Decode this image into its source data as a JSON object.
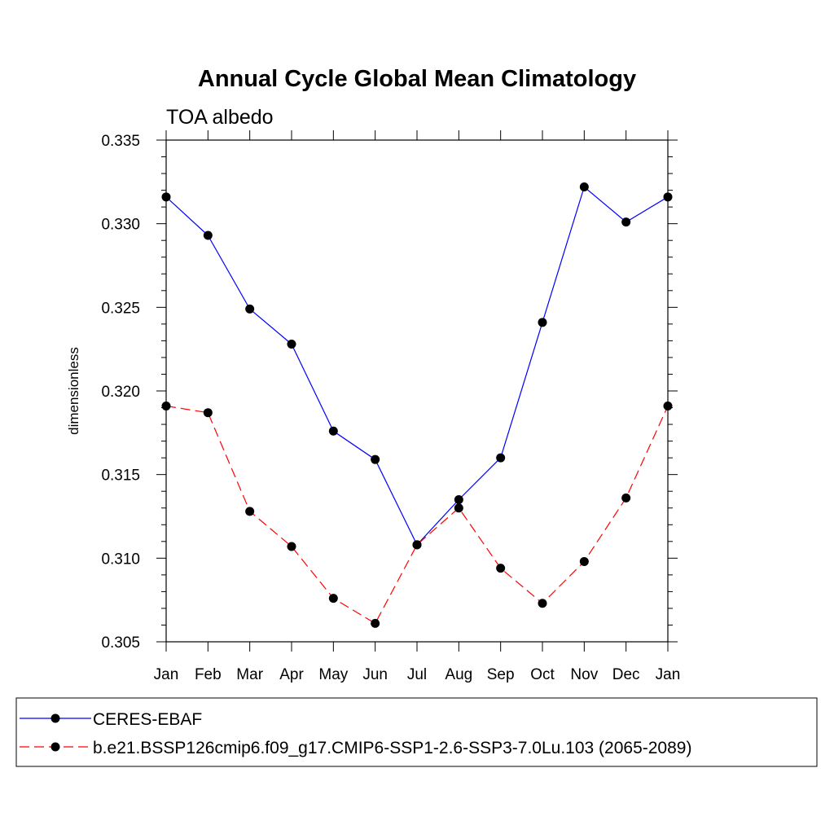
{
  "chart_data": {
    "type": "line",
    "title": "Annual Cycle Global Mean Climatology",
    "subtitle": "TOA albedo",
    "xlabel": "",
    "ylabel": "dimensionless",
    "categories": [
      "Jan",
      "Feb",
      "Mar",
      "Apr",
      "May",
      "Jun",
      "Jul",
      "Aug",
      "Sep",
      "Oct",
      "Nov",
      "Dec",
      "Jan"
    ],
    "ylim": [
      0.305,
      0.335
    ],
    "yticks": [
      "0.305",
      "0.310",
      "0.315",
      "0.320",
      "0.325",
      "0.330",
      "0.335"
    ],
    "grid": false,
    "legend_position": "bottom",
    "series": [
      {
        "name": "CERES-EBAF",
        "color": "#0000ff",
        "style": "solid",
        "marker": "filled-circle",
        "values": [
          0.3316,
          0.3293,
          0.3249,
          0.3228,
          0.3176,
          0.3159,
          0.3108,
          0.3135,
          0.316,
          0.3241,
          0.3322,
          0.3301,
          0.3316
        ]
      },
      {
        "name": "b.e21.BSSP126cmip6.f09_g17.CMIP6-SSP1-2.6-SSP3-7.0Lu.103 (2065-2089)",
        "color": "#ff0000",
        "style": "dashed",
        "marker": "filled-circle",
        "values": [
          0.3191,
          0.3187,
          0.3128,
          0.3107,
          0.3076,
          0.3061,
          0.3108,
          0.313,
          0.3094,
          0.3073,
          0.3098,
          0.3136,
          0.3191
        ]
      }
    ]
  }
}
